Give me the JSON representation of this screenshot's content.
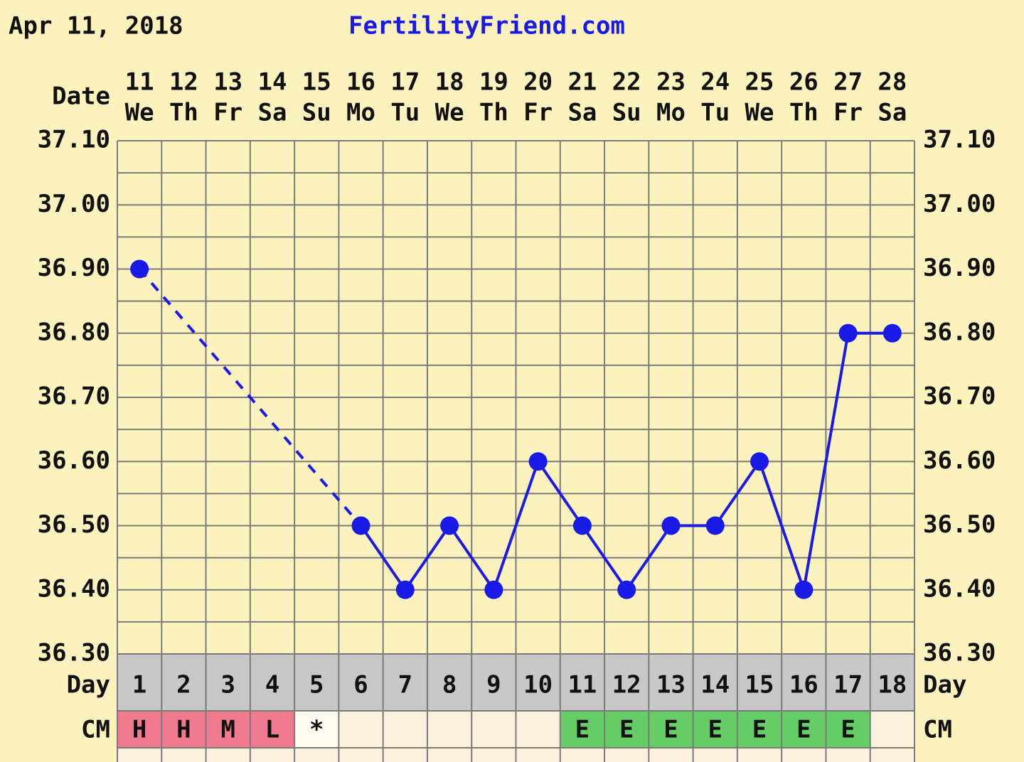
{
  "header": {
    "date": "Apr 11, 2018",
    "site": "FertilityFriend.com"
  },
  "chart_data": {
    "type": "line",
    "row_labels": {
      "date": "Date",
      "day": "Day",
      "cm": "CM"
    },
    "categories": [
      "11",
      "12",
      "13",
      "14",
      "15",
      "16",
      "17",
      "18",
      "19",
      "20",
      "21",
      "22",
      "23",
      "24",
      "25",
      "26",
      "27",
      "28"
    ],
    "weekdays": [
      "We",
      "Th",
      "Fr",
      "Sa",
      "Su",
      "Mo",
      "Tu",
      "We",
      "Th",
      "Fr",
      "Sa",
      "Su",
      "Mo",
      "Tu",
      "We",
      "Th",
      "Fr",
      "Sa"
    ],
    "cycle_days": [
      1,
      2,
      3,
      4,
      5,
      6,
      7,
      8,
      9,
      10,
      11,
      12,
      13,
      14,
      15,
      16,
      17,
      18
    ],
    "series": [
      {
        "color": "#1a1ae6",
        "values": [
          36.9,
          null,
          null,
          null,
          null,
          36.5,
          36.4,
          36.5,
          36.4,
          36.6,
          36.5,
          36.4,
          36.5,
          36.5,
          36.6,
          36.4,
          36.8,
          36.8
        ]
      }
    ],
    "ylim": [
      36.3,
      37.1
    ],
    "yticks": [
      {
        "value": 36.3,
        "label": "36.30"
      },
      {
        "value": 36.4,
        "label": "36.40"
      },
      {
        "value": 36.5,
        "label": "36.50"
      },
      {
        "value": 36.6,
        "label": "36.60"
      },
      {
        "value": 36.7,
        "label": "36.70"
      },
      {
        "value": 36.8,
        "label": "36.80"
      },
      {
        "value": 36.9,
        "label": "36.90"
      },
      {
        "value": 37.0,
        "label": "37.00"
      },
      {
        "value": 37.1,
        "label": "37.10"
      }
    ],
    "grid": true,
    "cm": {
      "values": [
        "H",
        "H",
        "M",
        "L",
        "*",
        null,
        null,
        null,
        null,
        null,
        "E",
        "E",
        "E",
        "E",
        "E",
        "E",
        "E",
        null
      ],
      "colors": [
        "#f27a8e",
        "#f27a8e",
        "#f27a8e",
        "#f27a8e",
        "#fffaf2",
        "#fbf1dc",
        "#fbf1dc",
        "#fbf1dc",
        "#fbf1dc",
        "#fbf1dc",
        "#66cc66",
        "#66cc66",
        "#66cc66",
        "#66cc66",
        "#66cc66",
        "#66cc66",
        "#66cc66",
        "#fbf1dc"
      ]
    }
  }
}
